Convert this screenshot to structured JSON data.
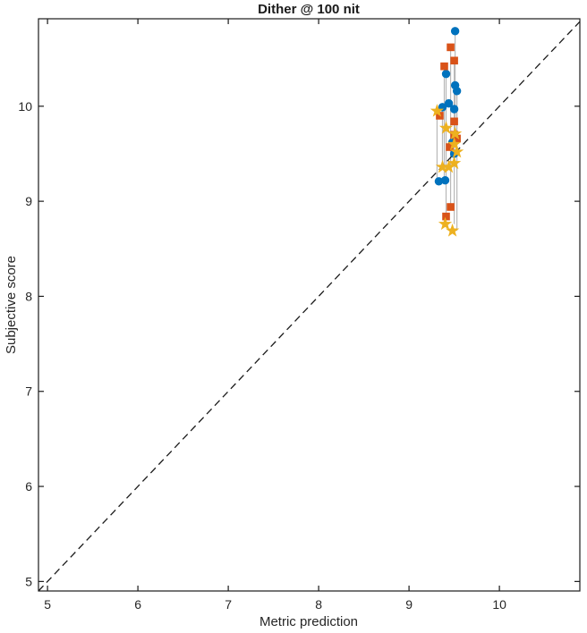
{
  "chart_data": {
    "type": "scatter",
    "title": "Dither @ 100 nit",
    "xlabel": "Metric prediction",
    "ylabel": "Subjective score",
    "xlim": [
      4.9,
      10.89
    ],
    "ylim": [
      4.9,
      10.92
    ],
    "xticks": [
      5,
      6,
      7,
      8,
      9,
      10
    ],
    "yticks": [
      5,
      6,
      7,
      8,
      9,
      10
    ],
    "grid": false,
    "legend": "none",
    "axis_color": "#1a1a1a",
    "identity_line": {
      "style": "dashed",
      "color": "#1a1a1a",
      "x1": 4.9,
      "y1": 4.9,
      "x2": 10.89,
      "y2": 10.89
    },
    "connector_lines": {
      "color": "#b8b8b8",
      "segments": [
        {
          "x": 9.31,
          "y1": 9.21,
          "y2": 9.95
        },
        {
          "x": 9.37,
          "y1": 9.36,
          "y2": 9.99
        },
        {
          "x": 9.39,
          "y1": 9.22,
          "y2": 10.42
        },
        {
          "x": 9.41,
          "y1": 8.84,
          "y2": 10.34
        },
        {
          "x": 9.46,
          "y1": 8.94,
          "y2": 10.62
        },
        {
          "x": 9.5,
          "y1": 8.76,
          "y2": 10.48
        },
        {
          "x": 9.51,
          "y1": 9.71,
          "y2": 10.79
        },
        {
          "x": 9.53,
          "y1": 8.69,
          "y2": 10.16
        }
      ]
    },
    "series": [
      {
        "name": "circle-series",
        "marker": "circle",
        "color": "#0072BD",
        "points": [
          [
            9.51,
            10.79
          ],
          [
            9.41,
            10.34
          ],
          [
            9.51,
            10.22
          ],
          [
            9.53,
            10.16
          ],
          [
            9.44,
            10.03
          ],
          [
            9.37,
            9.99
          ],
          [
            9.5,
            9.97
          ],
          [
            9.48,
            9.62
          ],
          [
            9.5,
            9.5
          ],
          [
            9.33,
            9.21
          ],
          [
            9.4,
            9.22
          ]
        ]
      },
      {
        "name": "square-series",
        "marker": "square",
        "color": "#D95319",
        "points": [
          [
            9.46,
            10.62
          ],
          [
            9.5,
            10.48
          ],
          [
            9.39,
            10.42
          ],
          [
            9.34,
            9.9
          ],
          [
            9.5,
            9.84
          ],
          [
            9.53,
            9.66
          ],
          [
            9.5,
            9.7
          ],
          [
            9.45,
            9.57
          ],
          [
            9.46,
            8.94
          ],
          [
            9.41,
            8.84
          ]
        ]
      },
      {
        "name": "star-series",
        "marker": "star",
        "color": "#EDB120",
        "points": [
          [
            9.31,
            9.95
          ],
          [
            9.41,
            9.77
          ],
          [
            9.51,
            9.71
          ],
          [
            9.5,
            9.6
          ],
          [
            9.53,
            9.52
          ],
          [
            9.5,
            9.4
          ],
          [
            9.37,
            9.36
          ],
          [
            9.44,
            9.36
          ],
          [
            9.4,
            8.76
          ],
          [
            9.48,
            8.69
          ]
        ]
      }
    ]
  }
}
